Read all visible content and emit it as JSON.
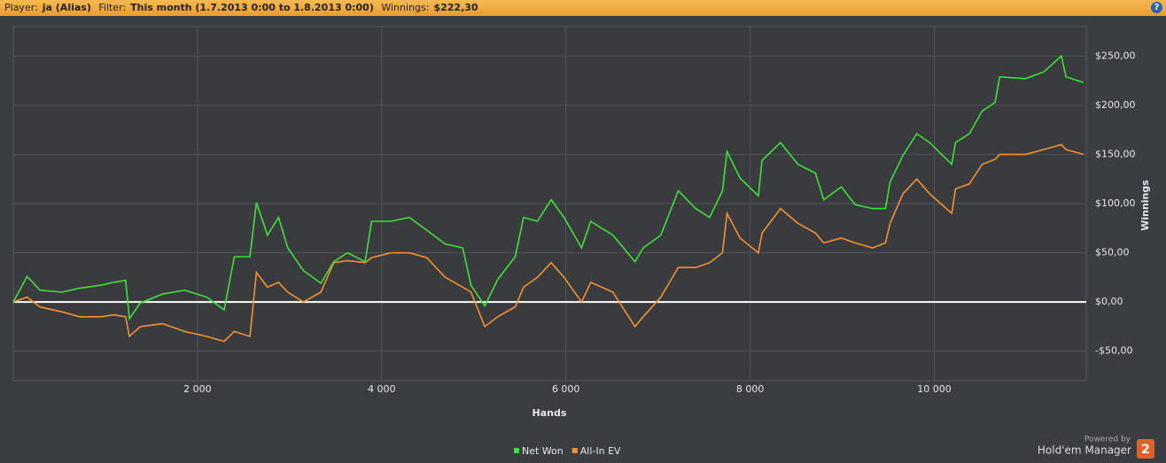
{
  "header": {
    "player_label": "Player:",
    "player": "ja (Alias)",
    "filter_label": "Filter:",
    "filter": "This month (1.7.2013 0:00 to 1.8.2013 0:00)",
    "winnings_label": "Winnings:",
    "winnings": "$222,30"
  },
  "branding": {
    "powered_by": "Powered by",
    "product": "Hold'em Manager",
    "version": "2"
  },
  "chart_data": {
    "type": "line",
    "x_label": "Hands",
    "y_label": "Winnings",
    "x": [
      0,
      150,
      290,
      525,
      720,
      950,
      1090,
      1220,
      1260,
      1380,
      1620,
      1860,
      2100,
      2290,
      2400,
      2570,
      2640,
      2760,
      2880,
      2980,
      3150,
      3340,
      3480,
      3630,
      3820,
      3890,
      4100,
      4300,
      4490,
      4690,
      4880,
      4970,
      5120,
      5260,
      5450,
      5540,
      5690,
      5840,
      5980,
      6170,
      6270,
      6510,
      6750,
      6840,
      7030,
      7220,
      7410,
      7560,
      7700,
      7750,
      7890,
      8090,
      8130,
      8330,
      8520,
      8710,
      8800,
      8990,
      9140,
      9330,
      9470,
      9520,
      9660,
      9810,
      9950,
      10190,
      10230,
      10380,
      10520,
      10660,
      10710,
      10990,
      11190,
      11380,
      11430,
      11620
    ],
    "series": [
      {
        "name": "Net Won",
        "color": "#3ee03a",
        "values": [
          0,
          26,
          12,
          10,
          14,
          17,
          20,
          22,
          -17,
          -1,
          8,
          12,
          5,
          -8,
          46,
          46,
          101,
          68,
          86,
          55,
          32,
          19,
          41,
          50,
          41,
          82,
          82,
          86,
          73,
          59,
          55,
          17,
          -4,
          23,
          46,
          86,
          82,
          104,
          86,
          55,
          82,
          68,
          41,
          55,
          68,
          113,
          95,
          86,
          113,
          153,
          126,
          108,
          144,
          162,
          140,
          131,
          104,
          117,
          99,
          95,
          95,
          122,
          149,
          171,
          162,
          140,
          162,
          171,
          194,
          203,
          229,
          227,
          234,
          250,
          229,
          223
        ]
      },
      {
        "name": "All-In EV",
        "color": "#f5922f",
        "values": [
          0,
          5,
          -5,
          -10,
          -15,
          -15,
          -13,
          -15,
          -35,
          -25,
          -22,
          -30,
          -35,
          -40,
          -30,
          -35,
          30,
          15,
          20,
          10,
          0,
          10,
          40,
          42,
          40,
          45,
          50,
          50,
          45,
          25,
          15,
          10,
          -25,
          -15,
          -5,
          15,
          25,
          40,
          25,
          0,
          20,
          10,
          -25,
          -15,
          5,
          35,
          35,
          40,
          50,
          90,
          65,
          50,
          70,
          95,
          80,
          70,
          60,
          65,
          60,
          55,
          60,
          80,
          110,
          125,
          110,
          90,
          115,
          120,
          140,
          145,
          150,
          150,
          155,
          160,
          155,
          150
        ]
      }
    ],
    "xlim": [
      0,
      11650
    ],
    "ylim": [
      -80,
      280
    ],
    "xticks": [
      {
        "value": 2000,
        "label": "2 000"
      },
      {
        "value": 4000,
        "label": "4 000"
      },
      {
        "value": 6000,
        "label": "6 000"
      },
      {
        "value": 8000,
        "label": "8 000"
      },
      {
        "value": 10000,
        "label": "10 000"
      }
    ],
    "yticks": [
      {
        "value": -50,
        "label": "-$50,00"
      },
      {
        "value": 0,
        "label": "$0,00"
      },
      {
        "value": 50,
        "label": "$50,00"
      },
      {
        "value": 100,
        "label": "$100,00"
      },
      {
        "value": 150,
        "label": "$150,00"
      },
      {
        "value": 200,
        "label": "$200,00"
      },
      {
        "value": 250,
        "label": "$250,00"
      }
    ],
    "grid": true
  }
}
